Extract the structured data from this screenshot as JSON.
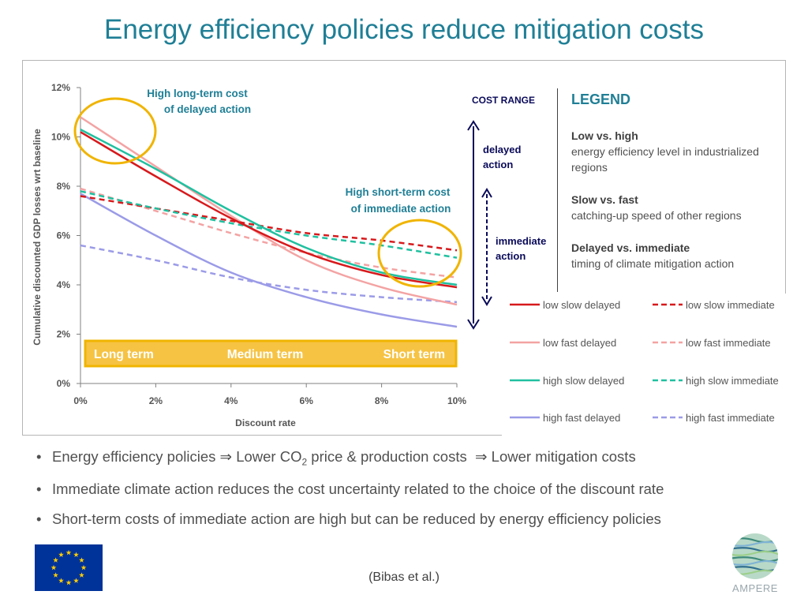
{
  "slide": {
    "title": "Energy efficiency policies reduce mitigation costs",
    "citation": "(Bibas et al.)",
    "logo_text": "AMPERE"
  },
  "annotations": {
    "long_term_cost": [
      "High long-term cost",
      "of delayed action"
    ],
    "short_term_cost": [
      "High short-term cost",
      "of immediate action"
    ],
    "term_bar": {
      "long": "Long term",
      "medium": "Medium term",
      "short": "Short term"
    },
    "cost_range": "COST RANGE",
    "delayed_arrow": [
      "delayed",
      "action"
    ],
    "immediate_arrow": [
      "immediate",
      "action"
    ]
  },
  "legend_panel": {
    "title": "LEGEND",
    "blocks": [
      {
        "head": "Low vs. high",
        "text": "energy efficiency level in industrialized regions"
      },
      {
        "head": "Slow vs. fast",
        "text": "catching-up speed of other regions"
      },
      {
        "head": "Delayed vs. immediate",
        "text": "timing of climate mitigation action"
      }
    ]
  },
  "bullets": {
    "b1_part1": "Energy efficiency policies",
    "b1_arrow1": "⇒",
    "b1_part2": "Lower CO",
    "b1_sub": "2",
    "b1_part3": "price & production costs",
    "b1_arrow2": "⇒",
    "b1_part4": "Lower mitigation costs",
    "b2": "Immediate climate action reduces the cost uncertainty related to the choice of the discount rate",
    "b3": "Short-term costs of immediate action are high but can be reduced by energy efficiency policies"
  },
  "chart_data": {
    "type": "line",
    "xlabel": "Discount rate",
    "ylabel": "Cumulative discounted GDP losses wrt baseline",
    "x": [
      0,
      2,
      4,
      6,
      8,
      10
    ],
    "x_ticks": [
      "0%",
      "2%",
      "4%",
      "6%",
      "8%",
      "10%"
    ],
    "y_ticks": [
      "0%",
      "2%",
      "4%",
      "6%",
      "8%",
      "10%",
      "12%"
    ],
    "xlim": [
      0,
      10
    ],
    "ylim": [
      0,
      12
    ],
    "grid": false,
    "legend_position": "bottom-right",
    "series": [
      {
        "name": "low slow delayed",
        "color": "#d7191c",
        "dash": false,
        "values": [
          10.2,
          8.4,
          6.7,
          5.3,
          4.4,
          3.9
        ]
      },
      {
        "name": "low slow immediate",
        "color": "#d7191c",
        "dash": true,
        "values": [
          7.6,
          7.1,
          6.6,
          6.1,
          5.8,
          5.4
        ]
      },
      {
        "name": "low fast delayed",
        "color": "#f4a3a3",
        "dash": false,
        "values": [
          10.8,
          8.8,
          6.8,
          5.0,
          3.9,
          3.2
        ]
      },
      {
        "name": "low fast immediate",
        "color": "#f4a3a3",
        "dash": true,
        "values": [
          7.9,
          7.0,
          6.1,
          5.3,
          4.7,
          4.3
        ]
      },
      {
        "name": "high slow delayed",
        "color": "#20c0a0",
        "dash": false,
        "values": [
          10.3,
          8.7,
          7.0,
          5.5,
          4.5,
          4.0
        ]
      },
      {
        "name": "high slow immediate",
        "color": "#20c0a0",
        "dash": true,
        "values": [
          7.8,
          7.1,
          6.5,
          6.0,
          5.6,
          5.1
        ]
      },
      {
        "name": "high fast delayed",
        "color": "#9b9be8",
        "dash": false,
        "values": [
          7.7,
          6.0,
          4.5,
          3.5,
          2.8,
          2.3
        ]
      },
      {
        "name": "high fast immediate",
        "color": "#9b9be8",
        "dash": true,
        "values": [
          5.6,
          5.0,
          4.3,
          3.8,
          3.5,
          3.3
        ]
      }
    ]
  },
  "colors": {
    "title": "#1f7f96",
    "annotation": "#1f7f96",
    "term_bar_fill": "#f6c343",
    "term_bar_border": "#f0b400",
    "arrows": "#0a0a5a",
    "eu_flag": "#003399",
    "eu_stars": "#ffcc00"
  },
  "icons": {
    "eu_flag": "eu-flag-icon",
    "ampere_logo": "ampere-globe-icon"
  }
}
